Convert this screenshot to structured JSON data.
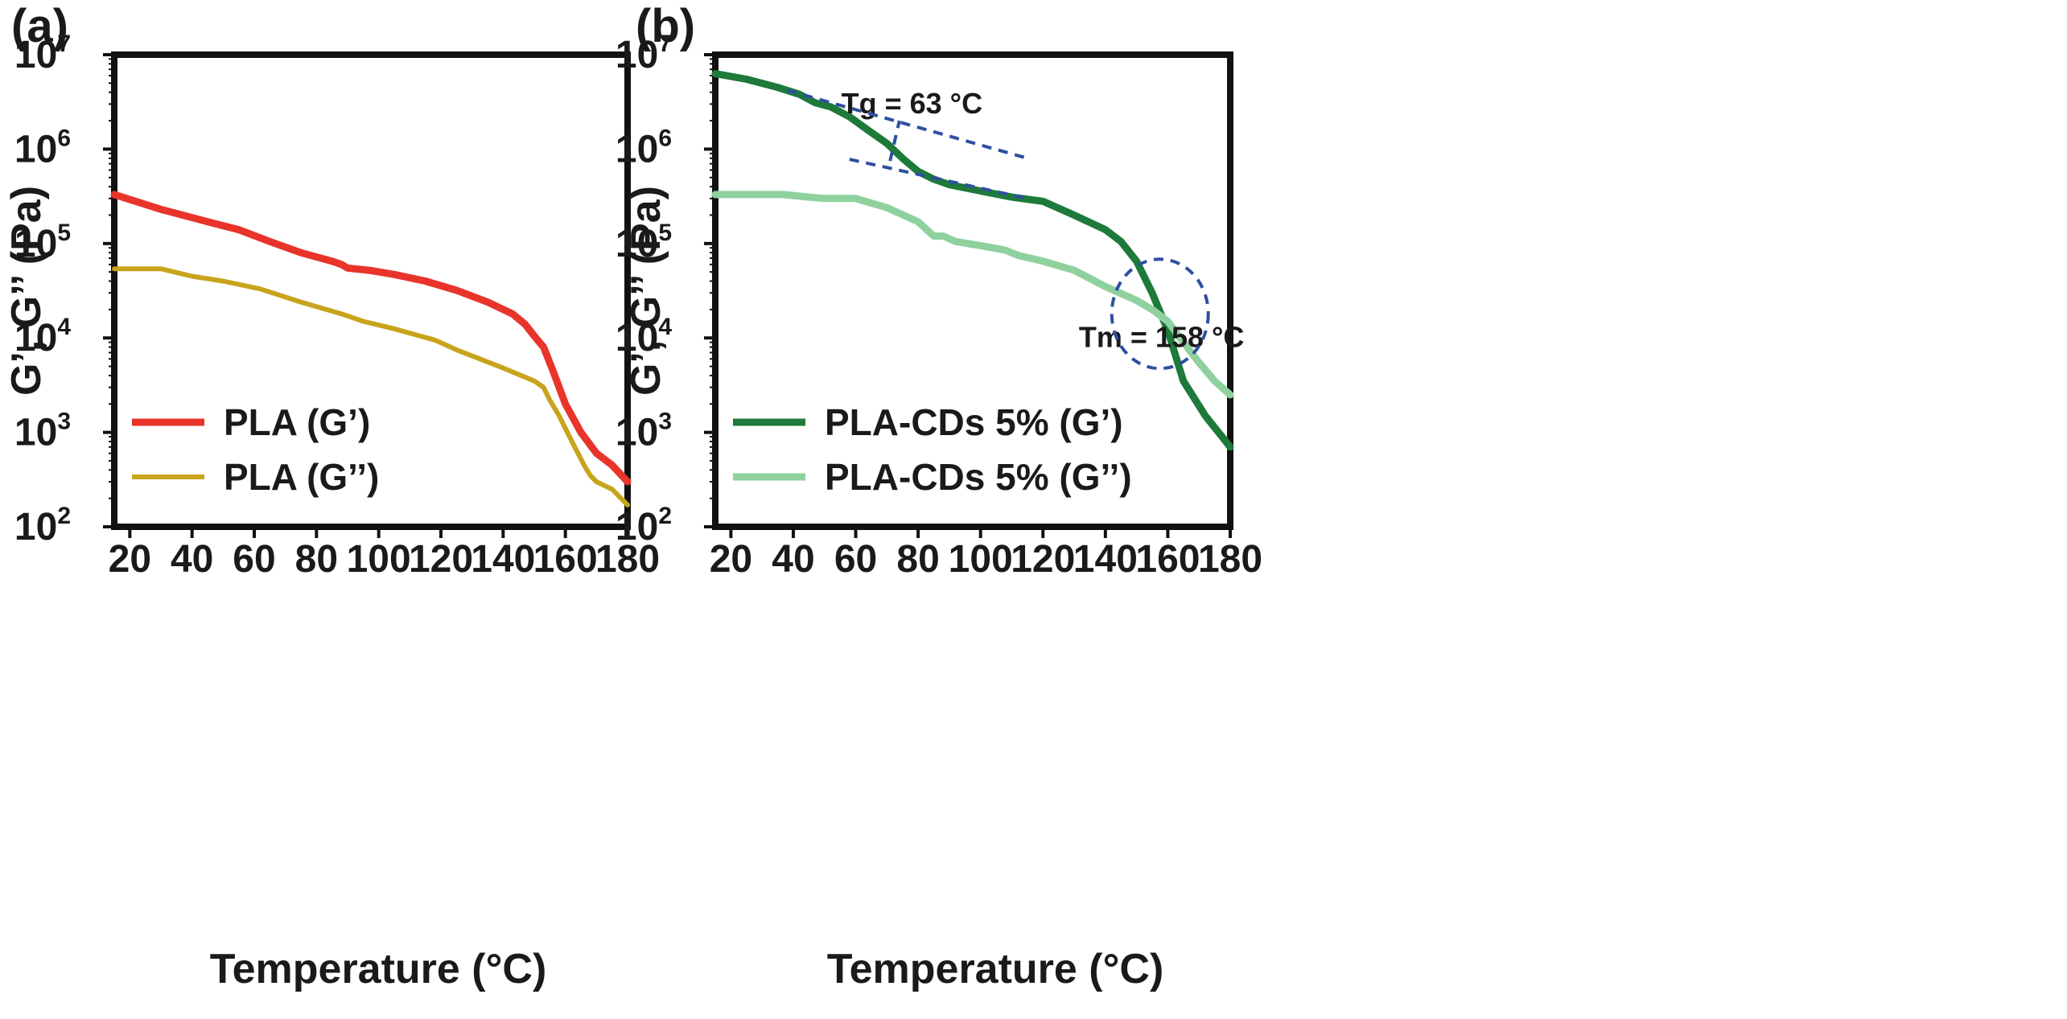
{
  "chart_data": [
    {
      "type": "line",
      "panel_label": "(a)",
      "xlabel": "Temperature (°C)",
      "ylabel": "G’, G’’ (Pa)",
      "y_scale": "log",
      "xlim": [
        15,
        180
      ],
      "ylim": [
        100,
        10000000
      ],
      "x_ticks": [
        20,
        40,
        60,
        80,
        100,
        120,
        140,
        160,
        180
      ],
      "y_ticks": [
        {
          "base": "10",
          "exp": "2",
          "value": 100
        },
        {
          "base": "10",
          "exp": "3",
          "value": 1000
        },
        {
          "base": "10",
          "exp": "4",
          "value": 10000
        },
        {
          "base": "10",
          "exp": "5",
          "value": 100000
        },
        {
          "base": "10",
          "exp": "6",
          "value": 1000000
        },
        {
          "base": "10",
          "exp": "7",
          "value": 10000000
        }
      ],
      "legend_position": "bottom-left",
      "grid": false,
      "series": [
        {
          "name": "PLA (G’)",
          "color": "#e8342a",
          "x": [
            15,
            30,
            45,
            55,
            65,
            75,
            85,
            88,
            90,
            97,
            105,
            115,
            125,
            135,
            143,
            147,
            150,
            153,
            156,
            160,
            165,
            170,
            175,
            180
          ],
          "y": [
            330000,
            230000,
            170000,
            140000,
            105000,
            80000,
            65000,
            60000,
            55000,
            52000,
            47000,
            40000,
            32000,
            24000,
            18000,
            14000,
            10500,
            8000,
            4500,
            2000,
            1000,
            600,
            450,
            300
          ]
        },
        {
          "name": "PLA (G’’)",
          "color": "#c8a41c",
          "x": [
            15,
            30,
            40,
            50,
            62,
            75,
            88,
            95,
            105,
            118,
            125,
            140,
            150,
            153,
            155,
            158,
            160,
            163,
            166,
            168,
            170,
            175,
            180
          ],
          "y": [
            54000,
            54000,
            45000,
            40000,
            33000,
            24000,
            18000,
            15000,
            12500,
            9500,
            7500,
            4800,
            3500,
            3000,
            2200,
            1500,
            1100,
            700,
            450,
            350,
            300,
            250,
            170
          ]
        }
      ]
    },
    {
      "type": "line",
      "panel_label": "(b)",
      "xlabel": "Temperature (°C)",
      "ylabel": "G’, G’’ (Pa)",
      "y_scale": "log",
      "xlim": [
        15,
        180
      ],
      "ylim": [
        100,
        10000000
      ],
      "x_ticks": [
        20,
        40,
        60,
        80,
        100,
        120,
        140,
        160,
        180
      ],
      "y_ticks": [
        {
          "base": "10",
          "exp": "2",
          "value": 100
        },
        {
          "base": "10",
          "exp": "3",
          "value": 1000
        },
        {
          "base": "10",
          "exp": "4",
          "value": 10000
        },
        {
          "base": "10",
          "exp": "5",
          "value": 100000
        },
        {
          "base": "10",
          "exp": "6",
          "value": 1000000
        },
        {
          "base": "10",
          "exp": "7",
          "value": 10000000
        }
      ],
      "legend_position": "bottom-left",
      "grid": false,
      "series": [
        {
          "name": "PLA-CDs 5% (G’)",
          "color": "#1d7a3a",
          "x": [
            15,
            25,
            35,
            42,
            47,
            52,
            58,
            65,
            70,
            75,
            80,
            85,
            90,
            100,
            110,
            120,
            130,
            140,
            145,
            150,
            155,
            160,
            165,
            172,
            180
          ],
          "y": [
            6300000,
            5500000,
            4500000,
            3800000,
            3100000,
            2800000,
            2200000,
            1500000,
            1150000,
            800000,
            580000,
            480000,
            420000,
            360000,
            310000,
            280000,
            200000,
            140000,
            105000,
            65000,
            30000,
            12000,
            3500,
            1500,
            700
          ]
        },
        {
          "name": "PLA-CDs 5% (G’’)",
          "color": "#8fd19e",
          "x": [
            15,
            25,
            37,
            45,
            50,
            60,
            70,
            80,
            85,
            88,
            92,
            100,
            108,
            112,
            120,
            130,
            140,
            150,
            155,
            160,
            165,
            170,
            175,
            180
          ],
          "y": [
            330000,
            330000,
            330000,
            310000,
            300000,
            300000,
            240000,
            170000,
            120000,
            120000,
            105000,
            95000,
            85000,
            75000,
            65000,
            52000,
            35000,
            25000,
            20000,
            15000,
            9000,
            5500,
            3500,
            2500
          ]
        }
      ],
      "annotations": [
        {
          "text": "Tg = 63 °C",
          "x": 78,
          "y": 2400000
        },
        {
          "text": "Tm = 158 °C",
          "x": 158,
          "y": 8000
        },
        {
          "text": "",
          "shape": "tangent-line",
          "x": [
            38,
            115
          ],
          "y": [
            4200000,
            800000
          ]
        },
        {
          "text": "",
          "shape": "tangent-line",
          "x": [
            58,
            115
          ],
          "y": [
            780000,
            300000
          ]
        },
        {
          "text": "",
          "shape": "tangent-line",
          "x": [
            71,
            74
          ],
          "y": [
            750000,
            2000000
          ]
        },
        {
          "text": "",
          "shape": "crossover-circle",
          "x": 157.5,
          "y": 18000
        }
      ]
    }
  ]
}
